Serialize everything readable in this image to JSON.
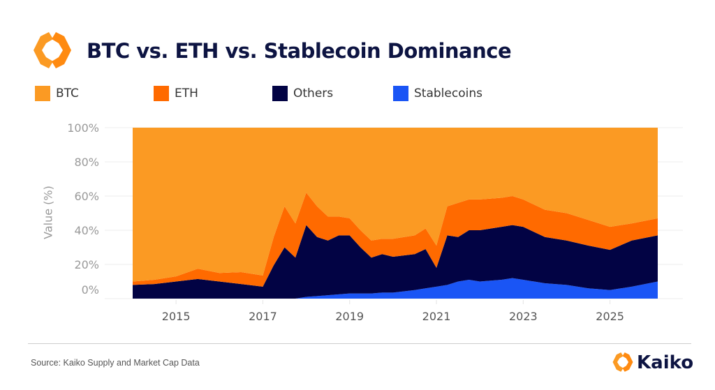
{
  "header": {
    "title": "BTC vs. ETH vs. Stablecoin Dominance"
  },
  "footer": {
    "source": "Source: Kaiko Supply and Market Cap Data",
    "brand": "Kaiko"
  },
  "colors": {
    "BTC": "#fb9a23",
    "ETH": "#ff6a00",
    "Others": "#020344",
    "Stablecoins": "#1a55f5"
  },
  "chart_data": {
    "type": "area",
    "stacked": true,
    "title": "BTC vs. ETH vs. Stablecoin Dominance",
    "xlabel": "",
    "ylabel": "Value (%)",
    "ylim": [
      0,
      100
    ],
    "xlim": [
      2014,
      2026.1
    ],
    "yticks": [
      "0%",
      "20%",
      "40%",
      "60%",
      "80%",
      "100%"
    ],
    "xticks": [
      "2015",
      "2017",
      "2019",
      "2021",
      "2023",
      "2025"
    ],
    "grid": true,
    "legend": "top",
    "x": [
      2014,
      2014.5,
      2015,
      2015.5,
      2016,
      2016.5,
      2017,
      2017.25,
      2017.5,
      2017.75,
      2018,
      2018.25,
      2018.5,
      2018.75,
      2019,
      2019.25,
      2019.5,
      2019.75,
      2020,
      2020.5,
      2020.75,
      2021,
      2021.25,
      2021.5,
      2021.75,
      2022,
      2022.5,
      2022.75,
      2023,
      2023.5,
      2024,
      2024.5,
      2025,
      2025.5,
      2026.1
    ],
    "series": [
      {
        "name": "Stablecoins",
        "values": [
          0,
          0,
          0,
          0,
          0,
          0,
          0,
          0,
          0,
          0,
          1,
          1.5,
          2,
          2.5,
          3,
          3,
          3,
          3.5,
          3.5,
          5,
          6,
          7,
          8,
          10,
          11,
          10,
          11,
          12,
          11,
          9,
          8,
          6,
          5,
          7,
          10
        ]
      },
      {
        "name": "Others",
        "values": [
          8,
          8.5,
          10,
          11.5,
          10,
          8.5,
          7,
          19.5,
          30,
          24,
          42,
          34.5,
          32,
          34.5,
          34,
          27,
          21,
          22.5,
          21,
          21,
          23,
          11,
          29,
          26,
          29,
          30,
          31,
          31,
          31,
          27,
          26,
          25,
          23.5,
          27,
          27
        ]
      },
      {
        "name": "ETH",
        "values": [
          2,
          2.5,
          3,
          6,
          5,
          7,
          6.5,
          16.5,
          24,
          20,
          19,
          18,
          14,
          11,
          10,
          10,
          10,
          9,
          10.5,
          11,
          12,
          13,
          17,
          20,
          18,
          18,
          17,
          17,
          16,
          16,
          16,
          15,
          13.5,
          10,
          10
        ]
      },
      {
        "name": "BTC",
        "values": [
          90,
          89,
          87,
          82.5,
          85,
          84.5,
          86.5,
          64,
          46,
          56,
          38,
          46,
          52,
          52,
          53,
          60,
          66,
          65,
          65,
          63,
          59,
          69,
          46,
          44,
          42,
          42,
          41,
          40,
          42,
          48,
          50,
          54,
          58,
          56,
          53
        ]
      }
    ],
    "legend_order": [
      "BTC",
      "ETH",
      "Others",
      "Stablecoins"
    ]
  }
}
